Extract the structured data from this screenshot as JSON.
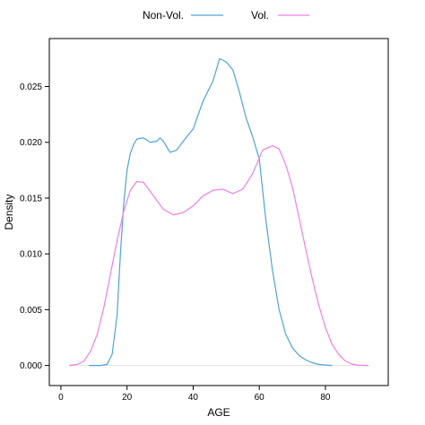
{
  "chart_data": {
    "type": "line",
    "title": "",
    "xlabel": "AGE",
    "ylabel": "Density",
    "xlim": [
      -3.5,
      99
    ],
    "ylim": [
      -0.0018,
      0.0293
    ],
    "x_ticks": [
      0,
      20,
      40,
      60,
      80
    ],
    "x_tick_labels": [
      "0",
      "20",
      "40",
      "60",
      "80"
    ],
    "y_ticks": [
      0.0,
      0.005,
      0.01,
      0.015,
      0.02,
      0.025
    ],
    "y_tick_labels": [
      "0.000",
      "0.005",
      "0.010",
      "0.015",
      "0.020",
      "0.025"
    ],
    "legend_position": "top",
    "grid": false,
    "baseline": 0,
    "baseline_color": "#e0e0e0",
    "series": [
      {
        "name": "Non-Vol.",
        "color": "#4fa3d8",
        "x": [
          8.5,
          12,
          14,
          15.5,
          17,
          18,
          19,
          20,
          21,
          22,
          23,
          25,
          27,
          29,
          30,
          31,
          32,
          33,
          35,
          37,
          40,
          43,
          46,
          48,
          50,
          52,
          54,
          56,
          58,
          60,
          62,
          64,
          66,
          68,
          70,
          72,
          74,
          76,
          78,
          80,
          82
        ],
        "y": [
          0,
          0,
          0.0001,
          0.001,
          0.0045,
          0.01,
          0.0145,
          0.0175,
          0.019,
          0.0198,
          0.0203,
          0.0204,
          0.02,
          0.0201,
          0.0204,
          0.0201,
          0.0196,
          0.0191,
          0.0193,
          0.0201,
          0.0212,
          0.0237,
          0.0255,
          0.0275,
          0.0272,
          0.0265,
          0.0245,
          0.0222,
          0.0205,
          0.0185,
          0.013,
          0.0085,
          0.005,
          0.0028,
          0.0016,
          0.0009,
          0.0005,
          0.00025,
          0.0001,
          4e-05,
          0
        ]
      },
      {
        "name": "Vol.",
        "color": "#f07ee8",
        "x": [
          2.5,
          5,
          7,
          9,
          11,
          13,
          15,
          17,
          19,
          21,
          23,
          25,
          28,
          31,
          34,
          37,
          40,
          43,
          46,
          49,
          52,
          55,
          58,
          61,
          64,
          66,
          68,
          70,
          72,
          74,
          76,
          78,
          80,
          82,
          84,
          86,
          88,
          90,
          93
        ],
        "y": [
          0,
          0.0001,
          0.0004,
          0.0013,
          0.0028,
          0.0052,
          0.0082,
          0.0112,
          0.0138,
          0.0157,
          0.0165,
          0.0164,
          0.0152,
          0.014,
          0.0135,
          0.0137,
          0.0143,
          0.0152,
          0.0157,
          0.0158,
          0.0154,
          0.0158,
          0.0172,
          0.0193,
          0.0197,
          0.0194,
          0.018,
          0.016,
          0.0133,
          0.0105,
          0.0078,
          0.0054,
          0.0034,
          0.0019,
          0.001,
          0.0004,
          0.00012,
          3e-05,
          0
        ]
      }
    ]
  }
}
